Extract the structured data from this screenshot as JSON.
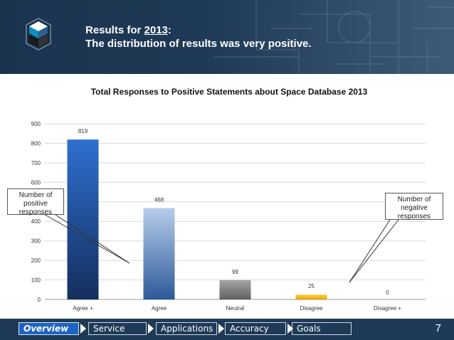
{
  "header": {
    "title_prefix": "Results for ",
    "year": "2013",
    "title_suffix": ":",
    "subtitle": "The distribution of results was very positive."
  },
  "colors": {
    "header_bg": "#1f3a56",
    "nav_active": "#1f63c2",
    "bar_agree_plus": "#2b61b8",
    "bar_agree": "#4a78bb",
    "bar_neutral": "#7f7f7f",
    "bar_disagree": "#f4b400"
  },
  "chart_data": {
    "type": "bar",
    "title": "Total Responses to Positive Statements about Space Database 2013",
    "categories": [
      "Agree +",
      "Agree",
      "Neutral",
      "Disagree",
      "Disagree +"
    ],
    "values": [
      819,
      468,
      99,
      25,
      0
    ],
    "data_labels": [
      "819",
      "468",
      "99",
      "25",
      "0"
    ],
    "yticks": [
      "0",
      "100",
      "200",
      "300",
      "400",
      "500",
      "600",
      "700",
      "800",
      "900"
    ],
    "ylim": [
      0,
      900
    ],
    "xlabel": "",
    "ylabel": "",
    "grid": true,
    "legend": "none"
  },
  "callouts": {
    "left": "Number of positive responses",
    "right": "Number of negative responses"
  },
  "nav": {
    "items": [
      "Overview",
      "Service",
      "Applications",
      "Accuracy",
      "Goals"
    ],
    "active": "Overview",
    "page_number": "7"
  }
}
